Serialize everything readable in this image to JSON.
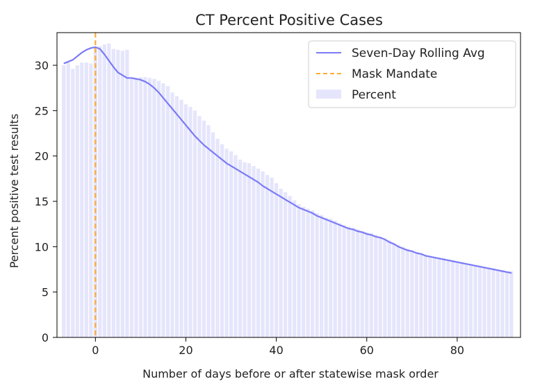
{
  "chart_data": {
    "type": "bar",
    "title": "CT Percent Positive Cases",
    "xlabel": "Number of days before or after statewise mask order",
    "ylabel": "Percent positive test results",
    "xlim": [
      -8.5,
      94
    ],
    "ylim": [
      0,
      33.6
    ],
    "xticks": [
      0,
      20,
      40,
      60,
      80
    ],
    "yticks": [
      0,
      5,
      10,
      15,
      20,
      25,
      30
    ],
    "grid": false,
    "legend_position": "top-right",
    "series": [
      {
        "name": "Seven-Day Rolling Avg",
        "kind": "line",
        "color": "#7b7bf5",
        "x": [
          -7,
          -6,
          -5,
          -4,
          -3,
          -2,
          -1,
          0,
          1,
          2,
          3,
          4,
          5,
          6,
          7,
          8,
          9,
          10,
          11,
          12,
          13,
          14,
          15,
          16,
          17,
          18,
          19,
          20,
          21,
          22,
          23,
          24,
          25,
          26,
          27,
          28,
          29,
          30,
          31,
          32,
          33,
          34,
          35,
          36,
          37,
          38,
          39,
          40,
          41,
          42,
          43,
          44,
          45,
          46,
          47,
          48,
          49,
          50,
          51,
          52,
          53,
          54,
          55,
          56,
          57,
          58,
          59,
          60,
          61,
          62,
          63,
          64,
          65,
          66,
          67,
          68,
          69,
          70,
          71,
          72,
          73,
          74,
          75,
          76,
          77,
          78,
          79,
          80,
          81,
          82,
          83,
          84,
          85,
          86,
          87,
          88,
          89,
          90,
          91,
          92
        ],
        "values": [
          30.2,
          30.4,
          30.6,
          31.0,
          31.4,
          31.7,
          31.9,
          32.0,
          31.8,
          31.2,
          30.5,
          29.8,
          29.2,
          28.9,
          28.6,
          28.6,
          28.5,
          28.4,
          28.2,
          27.9,
          27.5,
          27.0,
          26.4,
          25.8,
          25.2,
          24.6,
          24.0,
          23.4,
          22.8,
          22.2,
          21.7,
          21.2,
          20.8,
          20.4,
          20.0,
          19.6,
          19.2,
          18.9,
          18.6,
          18.3,
          18.0,
          17.7,
          17.4,
          17.1,
          16.7,
          16.4,
          16.1,
          15.8,
          15.5,
          15.2,
          14.9,
          14.6,
          14.3,
          14.1,
          13.9,
          13.7,
          13.4,
          13.2,
          13.0,
          12.8,
          12.6,
          12.4,
          12.2,
          12.0,
          11.9,
          11.7,
          11.6,
          11.4,
          11.3,
          11.1,
          11.0,
          10.8,
          10.5,
          10.3,
          10.0,
          9.8,
          9.6,
          9.5,
          9.3,
          9.2,
          9.0,
          8.9,
          8.8,
          8.7,
          8.6,
          8.5,
          8.4,
          8.3,
          8.2,
          8.1,
          8.0,
          7.9,
          7.8,
          7.7,
          7.6,
          7.5,
          7.4,
          7.3,
          7.2,
          7.1
        ]
      },
      {
        "name": "Mask Mandate",
        "kind": "vline",
        "color": "#ffaa33",
        "x": 0
      },
      {
        "name": "Percent",
        "kind": "bar",
        "color": "#e5e5fc",
        "x": [
          -7,
          -6,
          -5,
          -4,
          -3,
          -2,
          -1,
          0,
          1,
          2,
          3,
          4,
          5,
          6,
          7,
          8,
          9,
          10,
          11,
          12,
          13,
          14,
          15,
          16,
          17,
          18,
          19,
          20,
          21,
          22,
          23,
          24,
          25,
          26,
          27,
          28,
          29,
          30,
          31,
          32,
          33,
          34,
          35,
          36,
          37,
          38,
          39,
          40,
          41,
          42,
          43,
          44,
          45,
          46,
          47,
          48,
          49,
          50,
          51,
          52,
          53,
          54,
          55,
          56,
          57,
          58,
          59,
          60,
          61,
          62,
          63,
          64,
          65,
          66,
          67,
          68,
          69,
          70,
          71,
          72,
          73,
          74,
          75,
          76,
          77,
          78,
          79,
          80,
          81,
          82,
          83,
          84,
          85,
          86,
          87,
          88,
          89,
          90,
          91,
          92
        ],
        "values": [
          30.0,
          30.3,
          29.6,
          30.0,
          30.3,
          30.3,
          30.2,
          32.0,
          32.1,
          32.3,
          32.4,
          31.8,
          31.7,
          31.6,
          31.7,
          28.6,
          28.6,
          28.7,
          28.7,
          28.6,
          28.5,
          28.3,
          28.0,
          27.7,
          27.0,
          26.6,
          26.2,
          25.7,
          25.4,
          25.0,
          24.4,
          23.9,
          23.4,
          22.6,
          21.9,
          21.3,
          20.8,
          20.5,
          20.1,
          19.6,
          19.3,
          19.2,
          18.9,
          18.6,
          18.3,
          17.9,
          17.6,
          17.0,
          16.4,
          16.0,
          15.6,
          15.1,
          14.7,
          14.4,
          14.2,
          14.0,
          13.7,
          13.5,
          13.2,
          13.1,
          12.9,
          12.6,
          12.4,
          12.2,
          12.1,
          11.9,
          11.7,
          11.6,
          11.5,
          11.3,
          11.1,
          10.9,
          10.7,
          10.4,
          10.2,
          10.0,
          9.8,
          9.6,
          9.4,
          9.3,
          9.1,
          9.0,
          8.9,
          8.8,
          8.7,
          8.6,
          8.5,
          8.4,
          8.3,
          8.2,
          8.1,
          8.0,
          7.9,
          7.8,
          7.7,
          7.6,
          7.5,
          7.4,
          7.3,
          7.3
        ]
      }
    ]
  }
}
